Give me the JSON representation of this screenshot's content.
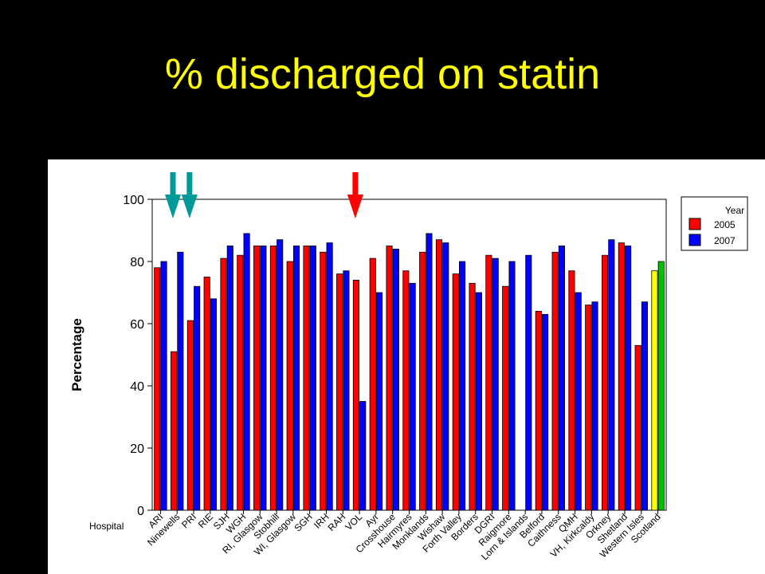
{
  "slide": {
    "title": "% discharged on statin"
  },
  "chart_data": {
    "type": "bar",
    "ylabel": "Percentage",
    "xlabel": "Hospital",
    "ylim": [
      0,
      100
    ],
    "yticks": [
      0,
      20,
      40,
      60,
      80,
      100
    ],
    "legend": {
      "title": "Year",
      "placement": "top-right"
    },
    "categories": [
      "ARI",
      "Ninewells",
      "PRI",
      "RIE",
      "SJH",
      "WGH",
      "RI, Glasgow",
      "Stobhill",
      "WI, Glasgow",
      "SGH",
      "IRH",
      "RAH",
      "VOL",
      "Ayr",
      "Crosshouse",
      "Hairmyres",
      "Monklands",
      "Wishaw",
      "Forth Valley",
      "Borders",
      "DGRI",
      "Raigmore",
      "Lorn & Islands",
      "Belford",
      "Caithness",
      "QMH",
      "VH, Kirkcaldy",
      "Orkney",
      "Shetland",
      "Western Isles",
      "Scotland"
    ],
    "series": [
      {
        "name": "2005",
        "color": "#ff0000",
        "values": [
          78,
          51,
          61,
          75,
          81,
          82,
          85,
          85,
          80,
          85,
          83,
          76,
          74,
          81,
          85,
          77,
          83,
          87,
          76,
          73,
          82,
          72,
          null,
          64,
          83,
          77,
          66,
          82,
          86,
          53,
          77
        ]
      },
      {
        "name": "2007",
        "color": "#0000ff",
        "values": [
          80,
          83,
          72,
          68,
          85,
          89,
          85,
          87,
          85,
          85,
          86,
          77,
          35,
          70,
          84,
          73,
          89,
          86,
          80,
          70,
          81,
          80,
          82,
          63,
          85,
          70,
          67,
          87,
          85,
          67,
          80
        ]
      }
    ],
    "highlight_colors": {
      "2005": "#ffff00",
      "2007": "#00c000"
    },
    "annotations": [
      {
        "type": "arrow-down",
        "color": "#009999",
        "category": "Ninewells"
      },
      {
        "type": "arrow-down",
        "color": "#009999",
        "category": "PRI"
      },
      {
        "type": "arrow-down",
        "color": "#ff0000",
        "category": "VOL"
      }
    ]
  }
}
